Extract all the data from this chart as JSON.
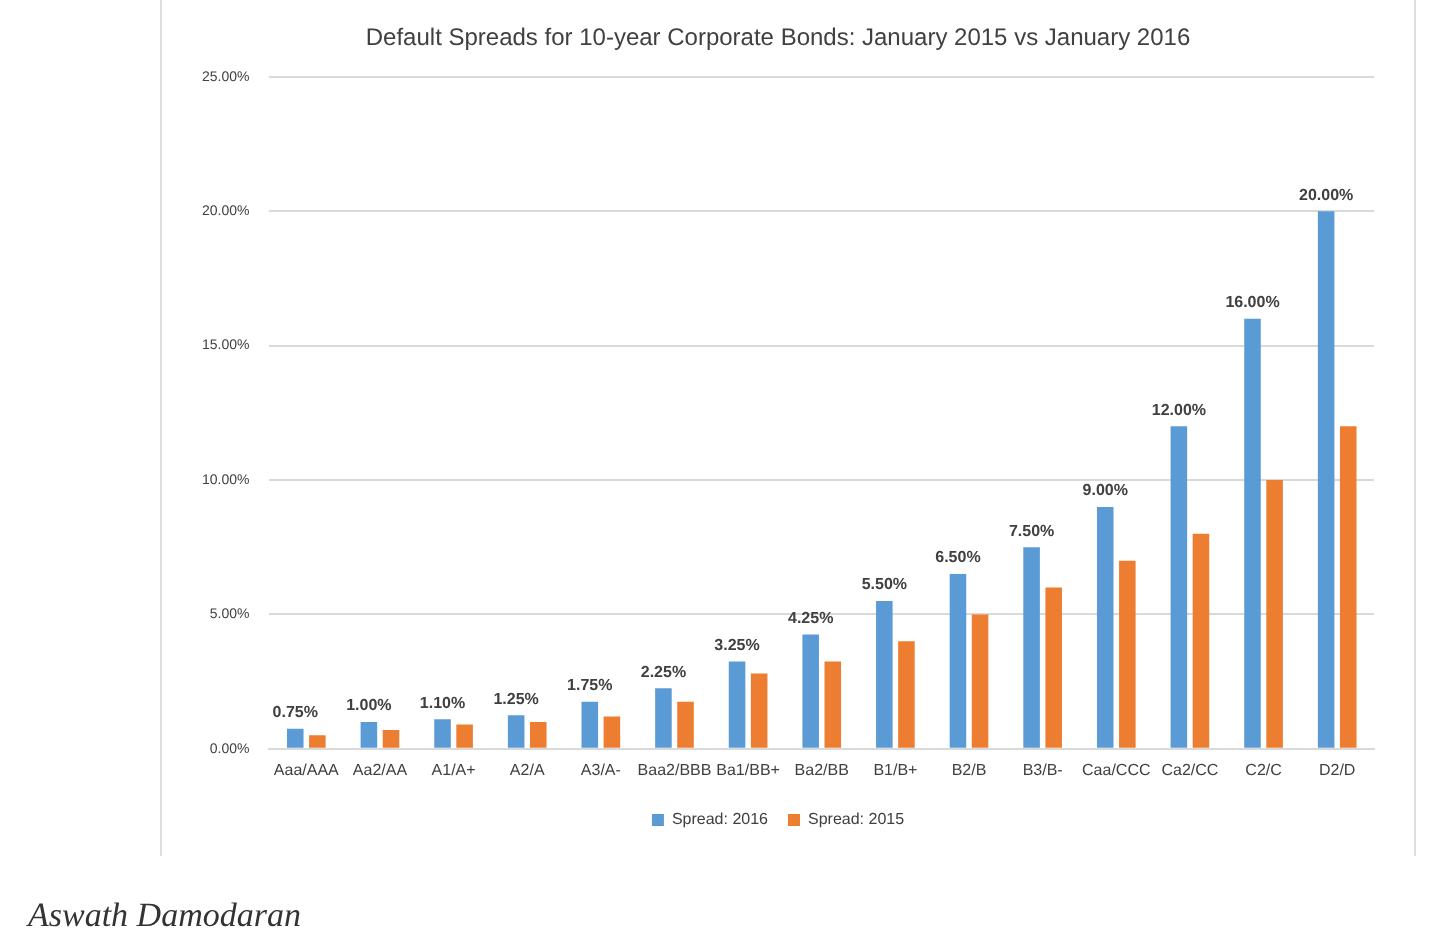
{
  "chart_data": {
    "type": "bar",
    "title": "Default Spreads for 10-year Corporate Bonds: January 2015 vs January 2016",
    "categories": [
      "Aaa/AAA",
      "Aa2/AA",
      "A1/A+",
      "A2/A",
      "A3/A-",
      "Baa2/BBB",
      "Ba1/BB+",
      "Ba2/BB",
      "B1/B+",
      "B2/B",
      "B3/B-",
      "Caa/CCC",
      "Ca2/CC",
      "C2/C",
      "D2/D"
    ],
    "series": [
      {
        "name": "Spread: 2016",
        "color": "#5b9bd5",
        "values": [
          0.75,
          1.0,
          1.1,
          1.25,
          1.75,
          2.25,
          3.25,
          4.25,
          5.5,
          6.5,
          7.5,
          9.0,
          12.0,
          16.0,
          20.0
        ],
        "value_labels": [
          "0.75%",
          "1.00%",
          "1.10%",
          "1.25%",
          "1.75%",
          "2.25%",
          "3.25%",
          "4.25%",
          "5.50%",
          "6.50%",
          "7.50%",
          "9.00%",
          "12.00%",
          "16.00%",
          "20.00%"
        ]
      },
      {
        "name": "Spread: 2015",
        "color": "#ed7d31",
        "values": [
          0.5,
          0.7,
          0.9,
          1.0,
          1.2,
          1.75,
          2.8,
          3.25,
          4.0,
          5.0,
          6.0,
          7.0,
          8.0,
          10.0,
          12.0
        ]
      }
    ],
    "ylim": [
      0,
      25
    ],
    "yticks": [
      {
        "value": 0,
        "label": "0.00%"
      },
      {
        "value": 5,
        "label": "5.00%"
      },
      {
        "value": 10,
        "label": "10.00%"
      },
      {
        "value": 15,
        "label": "15.00%"
      },
      {
        "value": 20,
        "label": "20.00%"
      },
      {
        "value": 25,
        "label": "25.00%"
      }
    ],
    "grid": "y",
    "legend": "bottom",
    "annotations": [
      "Aswath Damodaran"
    ]
  }
}
